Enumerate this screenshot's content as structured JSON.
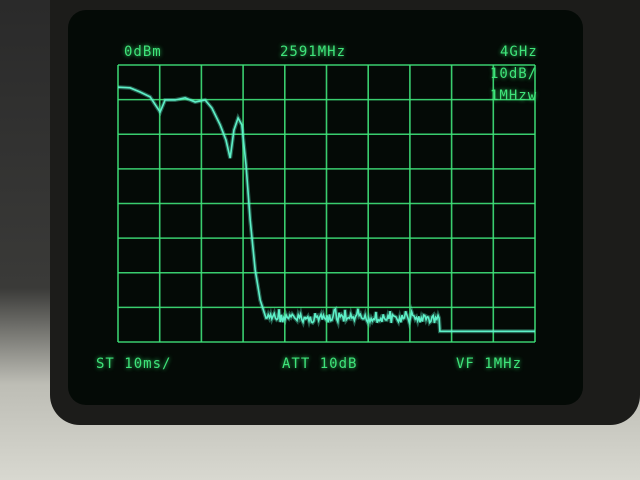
{
  "readouts": {
    "reference_level": "0dBm",
    "center_frequency": "2591MHz",
    "span": "4GHz",
    "scale": "10dB/",
    "rbw": "1MHzw",
    "sweep_time": "ST 10ms/",
    "attenuation": "ATT 10dB",
    "video_filter": "VF 1MHz"
  },
  "colors": {
    "graticule": "#3fe37a",
    "trace": "#5ef0c8",
    "screen": "#040a06"
  },
  "chart_data": {
    "type": "line",
    "title": "",
    "xlabel": "",
    "ylabel": "",
    "x_unit": "divisions",
    "y_unit": "dBm",
    "xlim": [
      0,
      10
    ],
    "ylim": [
      -80,
      0
    ],
    "grid": true,
    "x_divisions": 10,
    "y_divisions": 8,
    "series": [
      {
        "x": [
          0,
          0.29,
          0.53,
          0.77,
          1.01,
          1.13,
          1.37,
          1.61,
          1.85,
          2.09,
          2.25,
          2.45,
          2.59,
          2.69,
          2.78,
          2.88,
          2.97,
          3.07,
          3.17,
          3.29,
          3.41,
          3.55,
          4.5,
          5.5,
          6.5,
          7.7,
          7.72,
          10
        ],
        "y": [
          -6.4,
          -6.6,
          -7.8,
          -9.2,
          -13.6,
          -10.1,
          -10.1,
          -9.5,
          -10.7,
          -10.1,
          -12.4,
          -17.3,
          -21.7,
          -26.9,
          -18.8,
          -15.3,
          -17.3,
          -28.9,
          -44.8,
          -59.2,
          -67.9,
          -73.1,
          -73.3,
          -73.2,
          -73.3,
          -73.1,
          -76.9,
          -76.9
        ],
        "noise_floor_region": [
          3.55,
          7.7
        ]
      }
    ]
  }
}
